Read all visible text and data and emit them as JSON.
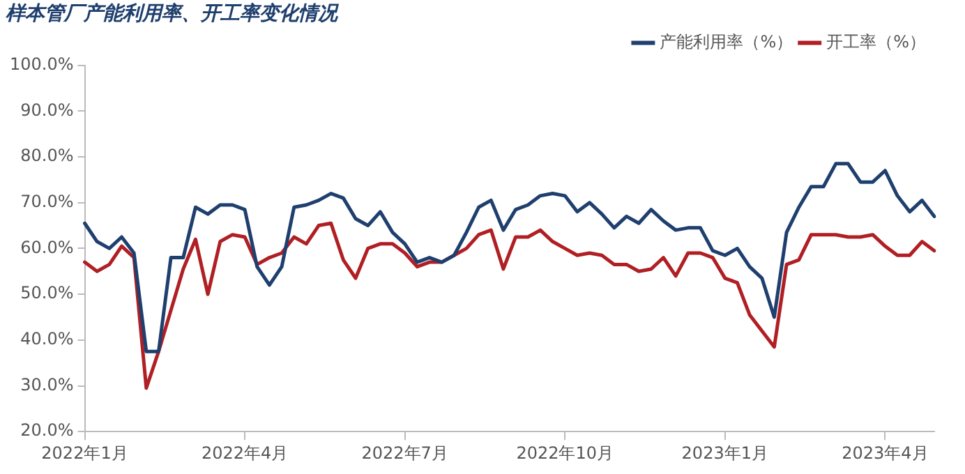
{
  "chart_data": {
    "type": "line",
    "title": "样本管厂产能利用率、开工率变化情况",
    "categories": [
      "2022年1月",
      null,
      null,
      null,
      null,
      null,
      null,
      null,
      null,
      null,
      null,
      null,
      null,
      "2022年4月",
      null,
      null,
      null,
      null,
      null,
      null,
      null,
      null,
      null,
      null,
      null,
      null,
      "2022年7月",
      null,
      null,
      null,
      null,
      null,
      null,
      null,
      null,
      null,
      null,
      null,
      null,
      "2022年10月",
      null,
      null,
      null,
      null,
      null,
      null,
      null,
      null,
      null,
      null,
      null,
      null,
      "2023年1月",
      null,
      null,
      null,
      null,
      null,
      null,
      null,
      null,
      null,
      null,
      null,
      null,
      "2023年4月",
      null,
      null,
      null,
      null
    ],
    "series": [
      {
        "name": "产能利用率（%）",
        "color": "#1f3f6e",
        "values": [
          65.5,
          61.5,
          60,
          62.5,
          59,
          37.5,
          37.5,
          58,
          58,
          69,
          67.5,
          69.5,
          69.5,
          68.5,
          56,
          52,
          56,
          69,
          69.5,
          70.5,
          72,
          71,
          66.5,
          65,
          68,
          63.5,
          61,
          57,
          58,
          57,
          58.5,
          63.5,
          69,
          70.5,
          64,
          68.5,
          69.5,
          71.5,
          72,
          71.5,
          68,
          70,
          67.5,
          64.5,
          67,
          65.5,
          68.5,
          66,
          64,
          64.5,
          64.5,
          59.5,
          58.5,
          60,
          56,
          53.5,
          45,
          63.5,
          69,
          73.5,
          73.5,
          78.5,
          78.5,
          74.5,
          74.5,
          77,
          71.5,
          68,
          70.5,
          67
        ]
      },
      {
        "name": "开工率（%）",
        "color": "#b01f24",
        "values": [
          57,
          55,
          56.5,
          60.5,
          58,
          29.5,
          37.5,
          46.5,
          55.5,
          62,
          50,
          61.5,
          63,
          62.5,
          56.5,
          58,
          59,
          62.5,
          61,
          65,
          65.5,
          57.5,
          53.5,
          60,
          61,
          61,
          59,
          56,
          57,
          57,
          58.5,
          60,
          63,
          64,
          55.5,
          62.5,
          62.5,
          64,
          61.5,
          60,
          58.5,
          59,
          58.5,
          56.5,
          56.5,
          55,
          55.5,
          58,
          54,
          59,
          59,
          58,
          53.5,
          52.5,
          45.5,
          42,
          38.5,
          56.5,
          57.5,
          63,
          63,
          63,
          62.5,
          62.5,
          63,
          60.5,
          58.5,
          58.5,
          61.5,
          59.5
        ]
      }
    ],
    "ylim": [
      20,
      100
    ],
    "yticks": [
      {
        "value": 20,
        "label": "20.0%"
      },
      {
        "value": 30,
        "label": "30.0%"
      },
      {
        "value": 40,
        "label": "40.0%"
      },
      {
        "value": 50,
        "label": "50.0%"
      },
      {
        "value": 60,
        "label": "60.0%"
      },
      {
        "value": 70,
        "label": "70.0%"
      },
      {
        "value": 80,
        "label": "80.0%"
      },
      {
        "value": 90,
        "label": "90.0%"
      },
      {
        "value": 100,
        "label": "100.0%"
      }
    ],
    "grid": false,
    "legend": "top",
    "marker": "none",
    "line_style": "solid"
  }
}
